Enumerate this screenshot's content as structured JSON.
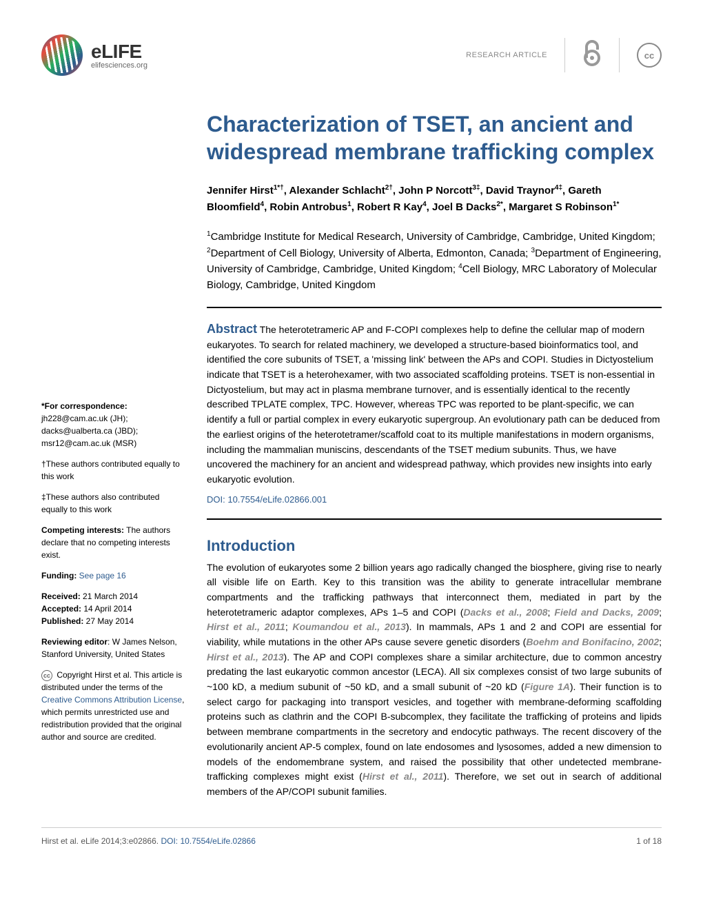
{
  "header": {
    "logo_title": "eLIFE",
    "logo_subtitle": "elifesciences.org",
    "article_type": "RESEARCH ARTICLE",
    "oa_symbol": "∂",
    "cc_text": "cc"
  },
  "article": {
    "title": "Characterization of TSET, an ancient and widespread membrane trafficking complex",
    "authors_html": "Jennifer Hirst<sup>1*†</sup>, Alexander Schlacht<sup>2†</sup>, John P Norcott<sup>3‡</sup>, David Traynor<sup>4‡</sup>, Gareth Bloomfield<sup>4</sup>, Robin Antrobus<sup>1</sup>, Robert R Kay<sup>4</sup>, Joel B Dacks<sup>2*</sup>, Margaret S Robinson<sup>1*</sup>",
    "affiliations_html": "<sup>1</sup>Cambridge Institute for Medical Research, University of Cambridge, Cambridge, United Kingdom; <sup>2</sup>Department of Cell Biology, University of Alberta, Edmonton, Canada; <sup>3</sup>Department of Engineering, University of Cambridge, Cambridge, United Kingdom; <sup>4</sup>Cell Biology, MRC Laboratory of Molecular Biology, Cambridge, United Kingdom",
    "abstract_label": "Abstract",
    "abstract_text": " The heterotetrameric AP and F-COPI complexes help to define the cellular map of modern eukaryotes. To search for related machinery, we developed a structure-based bioinformatics tool, and identified the core subunits of TSET, a 'missing link' between the APs and COPI. Studies in Dictyostelium indicate that TSET is a heterohexamer, with two associated scaffolding proteins. TSET is non-essential in Dictyostelium, but may act in plasma membrane turnover, and is essentially identical to the recently described TPLATE complex, TPC. However, whereas TPC was reported to be plant-specific, we can identify a full or partial complex in every eukaryotic supergroup. An evolutionary path can be deduced from the earliest origins of the heterotetramer/scaffold coat to its multiple manifestations in modern organisms, including the mammalian muniscins, descendants of the TSET medium subunits. Thus, we have uncovered the machinery for an ancient and widespread pathway, which provides new insights into early eukaryotic evolution.",
    "doi": "DOI: 10.7554/eLife.02866.001",
    "intro_title": "Introduction",
    "intro_body_html": "The evolution of eukaryotes some 2 billion years ago radically changed the biosphere, giving rise to nearly all visible life on Earth. Key to this transition was the ability to generate intracellular membrane compartments and the trafficking pathways that interconnect them, mediated in part by the heterotetrameric adaptor complexes, APs 1–5 and COPI (<span class=\"ref-link\">Dacks et al., 2008</span>; <span class=\"ref-link\">Field and Dacks, 2009</span>; <span class=\"ref-link\">Hirst et al., 2011</span>; <span class=\"ref-link\">Koumandou et al., 2013</span>). In mammals, APs 1 and 2 and COPI are essential for viability, while mutations in the other APs cause severe genetic disorders (<span class=\"ref-link\">Boehm and Bonifacino, 2002</span>; <span class=\"ref-link\">Hirst et al., 2013</span>). The AP and COPI complexes share a similar architecture, due to common ancestry predating the last eukaryotic common ancestor (LECA). All six complexes consist of two large subunits of ~100 kD, a medium subunit of ~50 kD, and a small subunit of ~20 kD (<span class=\"fig-link\">Figure 1A</span>). Their function is to select cargo for packaging into transport vesicles, and together with membrane-deforming scaffolding proteins such as clathrin and the COPI B-subcomplex, they facilitate the trafficking of proteins and lipids between membrane compartments in the secretory and endocytic pathways. The recent discovery of the evolutionarily ancient AP-5 complex, found on late endosomes and lysosomes, added a new dimension to models of the endomembrane system, and raised the possibility that other undetected membrane-trafficking complexes might exist (<span class=\"ref-link\">Hirst et al., 2011</span>). Therefore, we set out in search of additional members of the AP/COPI subunit families."
  },
  "sidebar": {
    "correspondence_label": "*For correspondence:",
    "correspondence_text": " jh228@cam.ac.uk (JH); dacks@ualberta.ca (JBD); msr12@cam.ac.uk (MSR)",
    "dagger_text": "†These authors contributed equally to this work",
    "ddagger_text": "‡These authors also contributed equally to this work",
    "competing_label": "Competing interests:",
    "competing_text": " The authors declare that no competing interests exist.",
    "funding_label": "Funding:",
    "funding_link": "See page 16",
    "received_label": "Received:",
    "received_text": " 21 March 2014",
    "accepted_label": "Accepted:",
    "accepted_text": " 14 April 2014",
    "published_label": "Published:",
    "published_text": " 27 May 2014",
    "editor_label": "Reviewing editor",
    "editor_text": ": W James Nelson, Stanford University, United States",
    "copyright_text": " Copyright Hirst et al. This article is distributed under the terms of the ",
    "copyright_link": "Creative Commons Attribution License",
    "copyright_end": ", which permits unrestricted use and redistribution provided that the original author and source are credited."
  },
  "footer": {
    "citation": "Hirst et al. eLife 2014;3:e02866. ",
    "doi_link": "DOI: 10.7554/eLife.02866",
    "page": "1 of 18"
  }
}
